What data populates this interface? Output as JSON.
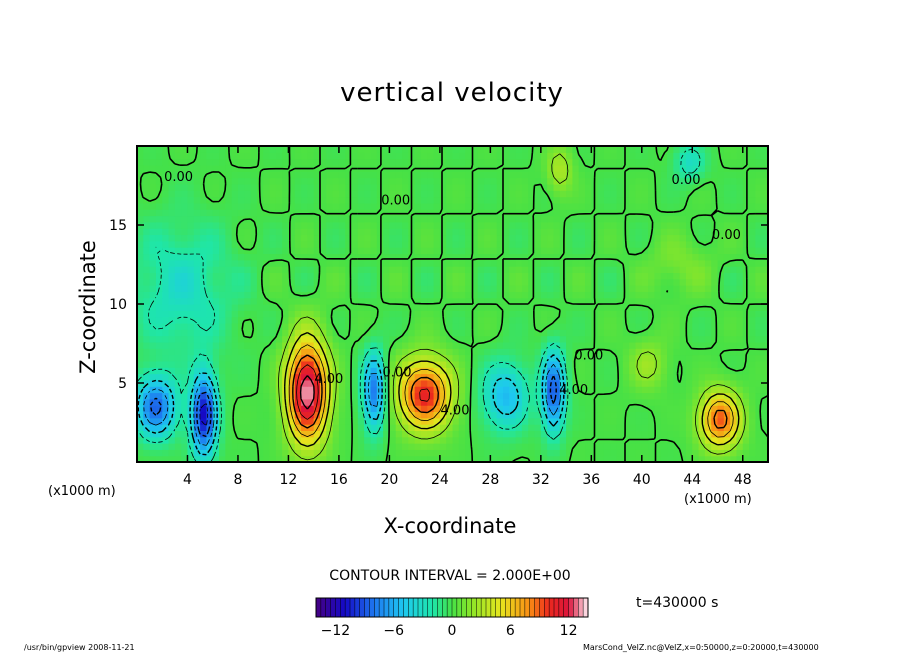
{
  "chart_data": {
    "type": "heatmap",
    "title": "vertical velocity",
    "xlabel": "X-coordinate",
    "ylabel": "Z-coordinate",
    "x_unit_label": "(x1000 m)",
    "xlim": [
      0,
      50
    ],
    "ylim": [
      0,
      20
    ],
    "x_ticks": [
      4,
      8,
      12,
      16,
      20,
      24,
      28,
      32,
      36,
      40,
      44,
      48
    ],
    "y_ticks": [
      5,
      10,
      15
    ],
    "contour_interval_label": "CONTOUR INTERVAL = 2.000E+00",
    "colorbar": {
      "range": [
        -14,
        14
      ],
      "ticks": [
        -12,
        -6,
        0,
        6,
        12
      ]
    },
    "contour_labels": [
      {
        "text": "0.00",
        "x": 3.3,
        "z": 17.8
      },
      {
        "text": "0.00",
        "x": 20.5,
        "z": 16.3
      },
      {
        "text": "0.00",
        "x": 43.5,
        "z": 17.6
      },
      {
        "text": "0.00",
        "x": 46.7,
        "z": 14.1
      },
      {
        "text": "4.00",
        "x": 15.2,
        "z": 5.0
      },
      {
        "text": "0.00",
        "x": 20.6,
        "z": 5.4
      },
      {
        "text": "4.00",
        "x": 25.2,
        "z": 3.0
      },
      {
        "text": "0.00",
        "x": 35.8,
        "z": 6.5
      },
      {
        "text": "4.00",
        "x": 34.6,
        "z": 4.3
      }
    ],
    "features": [
      {
        "x": 13.5,
        "z": 4.5,
        "w": 13.5,
        "sx": 1.6,
        "sz": 3.2
      },
      {
        "x": 22.8,
        "z": 4.3,
        "w": 10.5,
        "sx": 2.1,
        "sz": 2.2
      },
      {
        "x": 46.2,
        "z": 2.7,
        "w": 9.0,
        "sx": 1.6,
        "sz": 1.8
      },
      {
        "x": 1.5,
        "z": 3.5,
        "w": -8.5,
        "sx": 1.6,
        "sz": 1.9
      },
      {
        "x": 5.3,
        "z": 3.0,
        "w": -11.0,
        "sx": 1.0,
        "sz": 2.6
      },
      {
        "x": 18.8,
        "z": 4.5,
        "w": -8.0,
        "sx": 0.9,
        "sz": 2.4
      },
      {
        "x": 29.2,
        "z": 4.2,
        "w": -5.5,
        "sx": 1.8,
        "sz": 2.1
      },
      {
        "x": 33.0,
        "z": 4.5,
        "w": -9.0,
        "sx": 0.9,
        "sz": 2.5
      },
      {
        "x": 3.5,
        "z": 11.0,
        "w": -3.0,
        "sx": 4.0,
        "sz": 4.0
      },
      {
        "x": 40.5,
        "z": 6.2,
        "w": 2.5,
        "sx": 1.5,
        "sz": 1.6
      },
      {
        "x": 33.5,
        "z": 18.5,
        "w": 3.0,
        "sx": 1.0,
        "sz": 1.5
      },
      {
        "x": 43.0,
        "z": 12.5,
        "w": 1.5,
        "sx": 2.5,
        "sz": 1.8
      },
      {
        "x": 43.8,
        "z": 19.0,
        "w": -3.0,
        "sx": 1.2,
        "sz": 1.2
      }
    ]
  },
  "time_label": "t=430000 s",
  "footer_left": "/usr/bin/gpview   2008-11-21",
  "footer_right": "MarsCond_VelZ.nc@VelZ,x=0:50000,z=0:20000,t=430000"
}
